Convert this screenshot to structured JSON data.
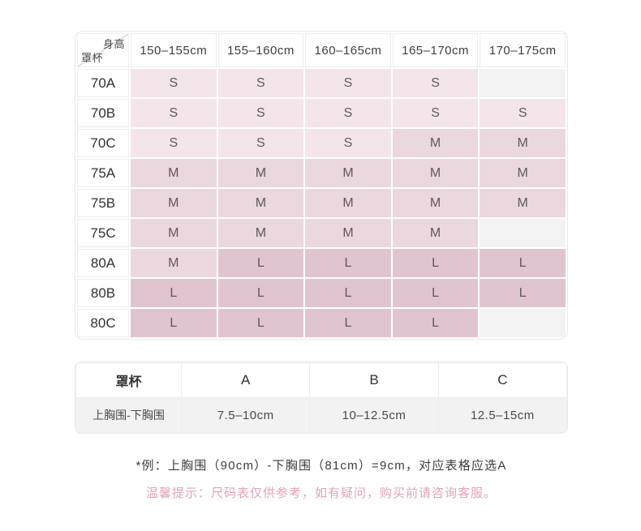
{
  "size_table": {
    "corner": {
      "top": "身高",
      "bottom": "罩杯"
    },
    "columns": [
      "150–155cm",
      "155–160cm",
      "160–165cm",
      "165–170cm",
      "170–175cm"
    ],
    "rows": [
      {
        "label": "70A",
        "cells": [
          "S",
          "S",
          "S",
          "S",
          ""
        ]
      },
      {
        "label": "70B",
        "cells": [
          "S",
          "S",
          "S",
          "S",
          "S"
        ]
      },
      {
        "label": "70C",
        "cells": [
          "S",
          "S",
          "S",
          "M",
          "M"
        ]
      },
      {
        "label": "75A",
        "cells": [
          "M",
          "M",
          "M",
          "M",
          "M"
        ]
      },
      {
        "label": "75B",
        "cells": [
          "M",
          "M",
          "M",
          "M",
          "M"
        ]
      },
      {
        "label": "75C",
        "cells": [
          "M",
          "M",
          "M",
          "M",
          ""
        ]
      },
      {
        "label": "80A",
        "cells": [
          "M",
          "L",
          "L",
          "L",
          "L"
        ]
      },
      {
        "label": "80B",
        "cells": [
          "L",
          "L",
          "L",
          "L",
          "L"
        ]
      },
      {
        "label": "80C",
        "cells": [
          "L",
          "L",
          "L",
          "L",
          ""
        ]
      }
    ]
  },
  "cup_table": {
    "header_label": "罩杯",
    "cup_columns": [
      "A",
      "B",
      "C"
    ],
    "row_label": "上胸围-下胸围",
    "values": [
      "7.5–10cm",
      "10–12.5cm",
      "12.5–15cm"
    ]
  },
  "notes": {
    "example": "*例：上胸围（90cm）-下胸围（81cm）=9cm，对应表格应选A",
    "tip": "温馨提示：尺码表仅供参考，如有疑问，购买前请咨询客服。"
  },
  "colors": {
    "s_bg": "#f3e5e9",
    "m_bg": "#ebd7de",
    "l_bg": "#e0c5d0",
    "empty_bg": "#f4f3f3",
    "tip_text": "#e2a3b5"
  }
}
